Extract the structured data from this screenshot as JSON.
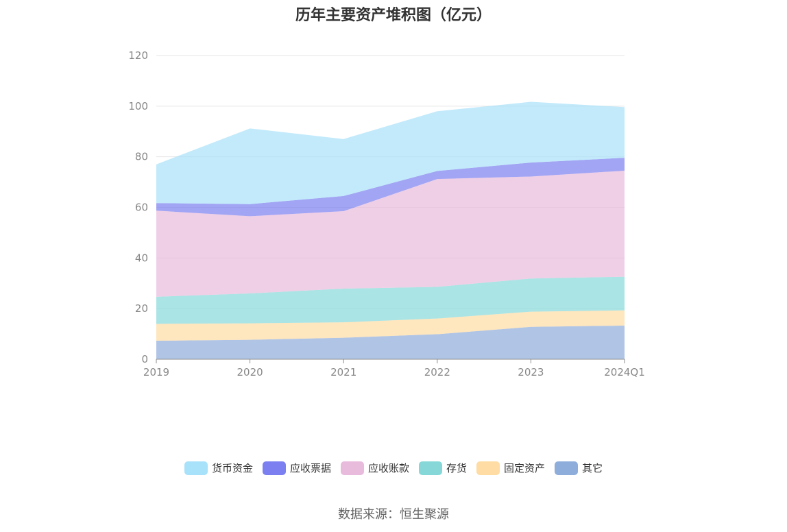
{
  "chart_data": {
    "type": "area",
    "title": "历年主要资产堆积图（亿元）",
    "categories": [
      "2019",
      "2020",
      "2021",
      "2022",
      "2023",
      "2024Q1"
    ],
    "ylim": [
      0,
      120
    ],
    "yticks": [
      0,
      20,
      40,
      60,
      80,
      100,
      120
    ],
    "grid": true,
    "legend_position": "bottom",
    "series": [
      {
        "name": "其它",
        "color": "#8FADDB",
        "values": [
          7.3,
          7.7,
          8.5,
          9.9,
          12.8,
          13.3
        ]
      },
      {
        "name": "固定资产",
        "color": "#FEDCA3",
        "values": [
          6.7,
          6.5,
          6.1,
          6.2,
          6.0,
          6.0
        ]
      },
      {
        "name": "存货",
        "color": "#86D8D8",
        "values": [
          10.7,
          11.8,
          13.3,
          12.5,
          13.1,
          13.3
        ]
      },
      {
        "name": "应收账款",
        "color": "#E8BADC",
        "values": [
          34.0,
          30.5,
          30.6,
          42.6,
          40.3,
          41.9
        ]
      },
      {
        "name": "应收票据",
        "color": "#7B7FEF",
        "values": [
          3.0,
          4.8,
          6.0,
          3.2,
          5.5,
          5.1
        ]
      },
      {
        "name": "货币资金",
        "color": "#A8E1FA",
        "values": [
          15.3,
          29.9,
          22.5,
          23.6,
          24.0,
          20.0
        ]
      }
    ],
    "legend_order": [
      "货币资金",
      "应收票据",
      "应收账款",
      "存货",
      "固定资产",
      "其它"
    ]
  },
  "source": "数据来源：恒生聚源"
}
